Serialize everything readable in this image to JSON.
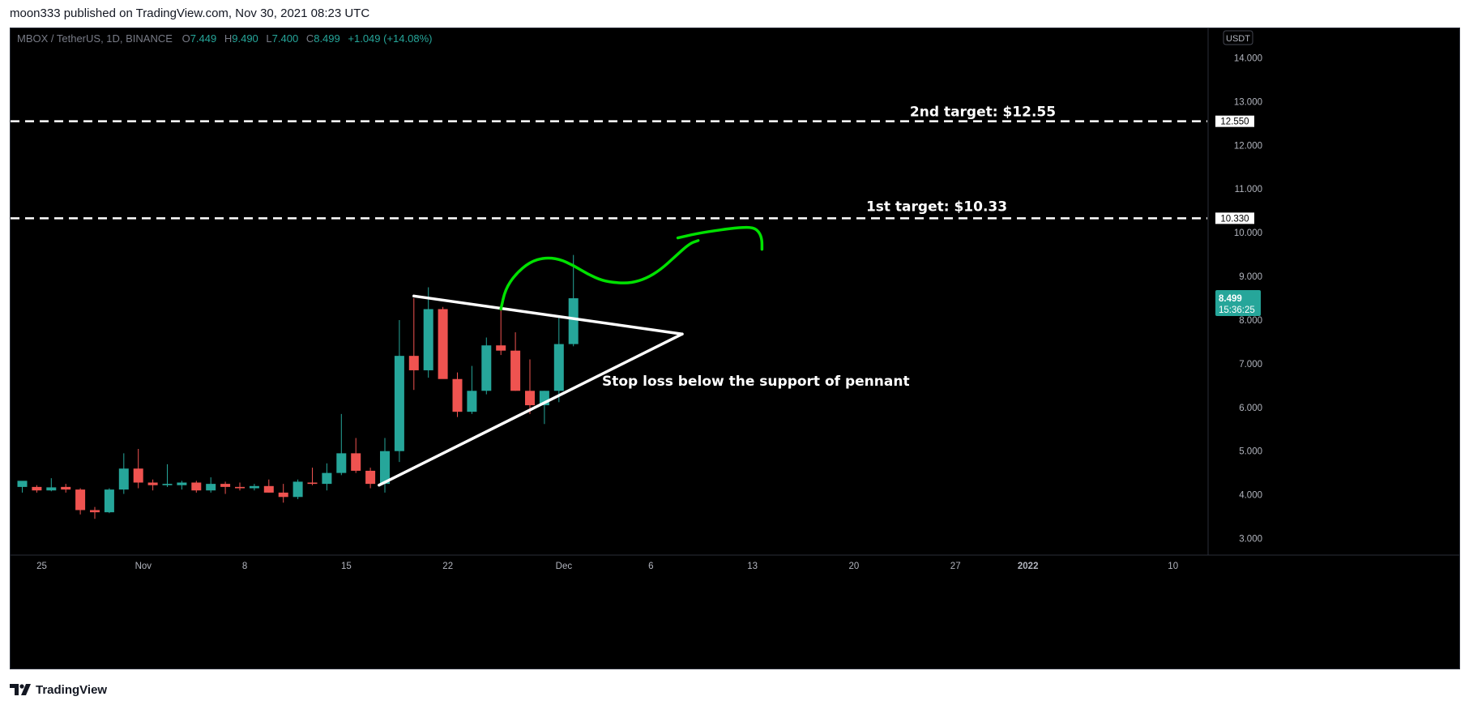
{
  "header": {
    "published_line": "moon333 published on TradingView.com, Nov 30, 2021 08:23 UTC"
  },
  "footer": {
    "brand": "TradingView",
    "logo_icon": "tradingview-logo-icon"
  },
  "legend": {
    "symbol_line": "MBOX / TetherUS, 1D, BINANCE",
    "o_label": "O",
    "o_value": "7.449",
    "h_label": "H",
    "h_value": "9.490",
    "l_label": "L",
    "l_value": "7.400",
    "c_label": "C",
    "c_value": "8.499",
    "change": "+1.049 (+14.08%)"
  },
  "price_scale": {
    "currency_badge": "USDT",
    "ticks": [
      "14.000",
      "13.000",
      "12.000",
      "11.000",
      "10.000",
      "9.000",
      "8.000",
      "7.000",
      "6.000",
      "5.000",
      "4.000",
      "3.000"
    ],
    "tick_values": [
      14,
      13,
      12,
      11,
      10,
      9,
      8,
      7,
      6,
      5,
      4,
      3
    ],
    "target2_label": "12.550",
    "target1_label": "10.330",
    "last_price_label": "8.499",
    "countdown_label": "15:36:25"
  },
  "time_scale": {
    "ticks": [
      {
        "label": "25",
        "index": 0,
        "bold": false
      },
      {
        "label": "Nov",
        "index": 7,
        "bold": false
      },
      {
        "label": "8",
        "index": 14,
        "bold": false
      },
      {
        "label": "15",
        "index": 21,
        "bold": false
      },
      {
        "label": "22",
        "index": 28,
        "bold": false
      },
      {
        "label": "Dec",
        "index": 36,
        "bold": false
      },
      {
        "label": "6",
        "index": 42,
        "bold": false
      },
      {
        "label": "13",
        "index": 49,
        "bold": false
      },
      {
        "label": "20",
        "index": 56,
        "bold": false
      },
      {
        "label": "27",
        "index": 63,
        "bold": false
      },
      {
        "label": "2022",
        "index": 68,
        "bold": true
      },
      {
        "label": "10",
        "index": 78,
        "bold": false
      }
    ]
  },
  "annotations": {
    "target2_text": "2nd target: $12.55",
    "target2_price": 12.55,
    "target1_text": "1st target: $10.33",
    "target1_price": 10.33,
    "stop_text": "Stop loss below the support of pennant"
  },
  "colors": {
    "background": "#000000",
    "up": "#26a69a",
    "down": "#ef5350",
    "text": "#b2b5be",
    "line": "#ffffff",
    "curve": "#00e100"
  },
  "chart_data": {
    "type": "candlestick",
    "symbol": "MBOX / TetherUS",
    "interval": "1D",
    "exchange": "BINANCE",
    "ylim": [
      2.6,
      14.5
    ],
    "first_date": "Oct 24, 2021",
    "candles": [
      {
        "o": 4.18,
        "h": 4.3,
        "l": 4.05,
        "c": 4.32
      },
      {
        "o": 4.18,
        "h": 4.22,
        "l": 4.05,
        "c": 4.1
      },
      {
        "o": 4.1,
        "h": 4.38,
        "l": 4.08,
        "c": 4.17
      },
      {
        "o": 4.18,
        "h": 4.25,
        "l": 4.05,
        "c": 4.12
      },
      {
        "o": 4.12,
        "h": 4.15,
        "l": 3.55,
        "c": 3.65
      },
      {
        "o": 3.65,
        "h": 3.72,
        "l": 3.45,
        "c": 3.6
      },
      {
        "o": 3.6,
        "h": 4.15,
        "l": 3.58,
        "c": 4.12
      },
      {
        "o": 4.12,
        "h": 4.95,
        "l": 4.02,
        "c": 4.6
      },
      {
        "o": 4.6,
        "h": 5.05,
        "l": 4.15,
        "c": 4.28
      },
      {
        "o": 4.28,
        "h": 4.35,
        "l": 4.1,
        "c": 4.22
      },
      {
        "o": 4.22,
        "h": 4.7,
        "l": 4.18,
        "c": 4.25
      },
      {
        "o": 4.22,
        "h": 4.32,
        "l": 4.12,
        "c": 4.28
      },
      {
        "o": 4.28,
        "h": 4.32,
        "l": 4.05,
        "c": 4.1
      },
      {
        "o": 4.1,
        "h": 4.4,
        "l": 4.05,
        "c": 4.25
      },
      {
        "o": 4.25,
        "h": 4.3,
        "l": 4.02,
        "c": 4.18
      },
      {
        "o": 4.18,
        "h": 4.28,
        "l": 4.1,
        "c": 4.15
      },
      {
        "o": 4.15,
        "h": 4.25,
        "l": 4.1,
        "c": 4.2
      },
      {
        "o": 4.2,
        "h": 4.35,
        "l": 4.05,
        "c": 4.05
      },
      {
        "o": 4.05,
        "h": 4.25,
        "l": 3.82,
        "c": 3.95
      },
      {
        "o": 3.95,
        "h": 4.35,
        "l": 3.9,
        "c": 4.3
      },
      {
        "o": 4.28,
        "h": 4.62,
        "l": 4.22,
        "c": 4.25
      },
      {
        "o": 4.25,
        "h": 4.72,
        "l": 4.1,
        "c": 4.5
      },
      {
        "o": 4.5,
        "h": 5.85,
        "l": 4.45,
        "c": 4.95
      },
      {
        "o": 4.95,
        "h": 5.3,
        "l": 4.5,
        "c": 4.55
      },
      {
        "o": 4.55,
        "h": 4.62,
        "l": 4.15,
        "c": 4.25
      },
      {
        "o": 4.25,
        "h": 5.3,
        "l": 4.05,
        "c": 5.0
      },
      {
        "o": 5.0,
        "h": 8.0,
        "l": 4.75,
        "c": 7.18
      },
      {
        "o": 7.18,
        "h": 8.5,
        "l": 6.4,
        "c": 6.85
      },
      {
        "o": 6.85,
        "h": 8.75,
        "l": 6.68,
        "c": 8.25
      },
      {
        "o": 8.25,
        "h": 8.3,
        "l": 6.75,
        "c": 6.65
      },
      {
        "o": 6.65,
        "h": 6.8,
        "l": 5.78,
        "c": 5.9
      },
      {
        "o": 5.9,
        "h": 6.95,
        "l": 5.85,
        "c": 6.38
      },
      {
        "o": 6.38,
        "h": 7.6,
        "l": 6.3,
        "c": 7.42
      },
      {
        "o": 7.42,
        "h": 8.25,
        "l": 7.2,
        "c": 7.3
      },
      {
        "o": 7.3,
        "h": 7.72,
        "l": 6.38,
        "c": 6.38
      },
      {
        "o": 6.38,
        "h": 7.1,
        "l": 5.85,
        "c": 6.05
      },
      {
        "o": 6.05,
        "h": 6.38,
        "l": 5.62,
        "c": 6.38
      },
      {
        "o": 6.38,
        "h": 8.05,
        "l": 6.12,
        "c": 7.45
      },
      {
        "o": 7.45,
        "h": 9.49,
        "l": 7.4,
        "c": 8.499
      }
    ],
    "pennant": {
      "top_start": {
        "i": 27,
        "p": 8.55
      },
      "apex": {
        "i": 45.5,
        "p": 7.68
      },
      "bottom_start": {
        "i": 24.6,
        "p": 4.22
      }
    },
    "projection_curve": [
      {
        "i": 33.0,
        "p": 8.25
      },
      {
        "i": 33.3,
        "p": 8.7
      },
      {
        "i": 34.0,
        "p": 9.05
      },
      {
        "i": 35.0,
        "p": 9.33
      },
      {
        "i": 36.0,
        "p": 9.43
      },
      {
        "i": 37.0,
        "p": 9.4
      },
      {
        "i": 38.0,
        "p": 9.25
      },
      {
        "i": 39.0,
        "p": 9.05
      },
      {
        "i": 40.0,
        "p": 8.9
      },
      {
        "i": 41.0,
        "p": 8.85
      },
      {
        "i": 42.0,
        "p": 8.85
      },
      {
        "i": 43.0,
        "p": 8.95
      },
      {
        "i": 44.0,
        "p": 9.15
      },
      {
        "i": 45.0,
        "p": 9.45
      },
      {
        "i": 46.0,
        "p": 9.75
      },
      {
        "i": 46.6,
        "p": 9.82
      }
    ],
    "projection_stroke2": [
      {
        "i": 45.2,
        "p": 9.88
      },
      {
        "i": 46.5,
        "p": 9.98
      },
      {
        "i": 48.0,
        "p": 10.06
      },
      {
        "i": 49.5,
        "p": 10.12
      },
      {
        "i": 50.4,
        "p": 10.12
      },
      {
        "i": 50.8,
        "p": 10.02
      },
      {
        "i": 51.0,
        "p": 9.85
      },
      {
        "i": 51.0,
        "p": 9.62
      }
    ]
  }
}
